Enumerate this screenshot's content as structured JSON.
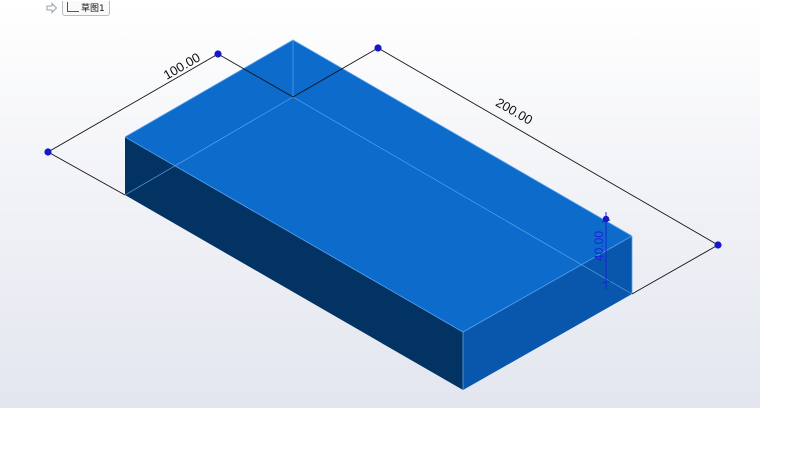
{
  "feature_tree": {
    "item_label": "草图1",
    "arrow_icon": "forward-arrow-icon",
    "sketch_icon": "sketch-icon"
  },
  "dimensions": {
    "width_label": "100.00",
    "length_label": "200.00",
    "height_label": "40.00"
  },
  "colors": {
    "top_face": "#0c6bcb",
    "front_face": "#033363",
    "right_face": "#0857ad",
    "dimension_line": "#111111",
    "handle": "#1418c8",
    "height_dimension": "#1a23d6"
  }
}
